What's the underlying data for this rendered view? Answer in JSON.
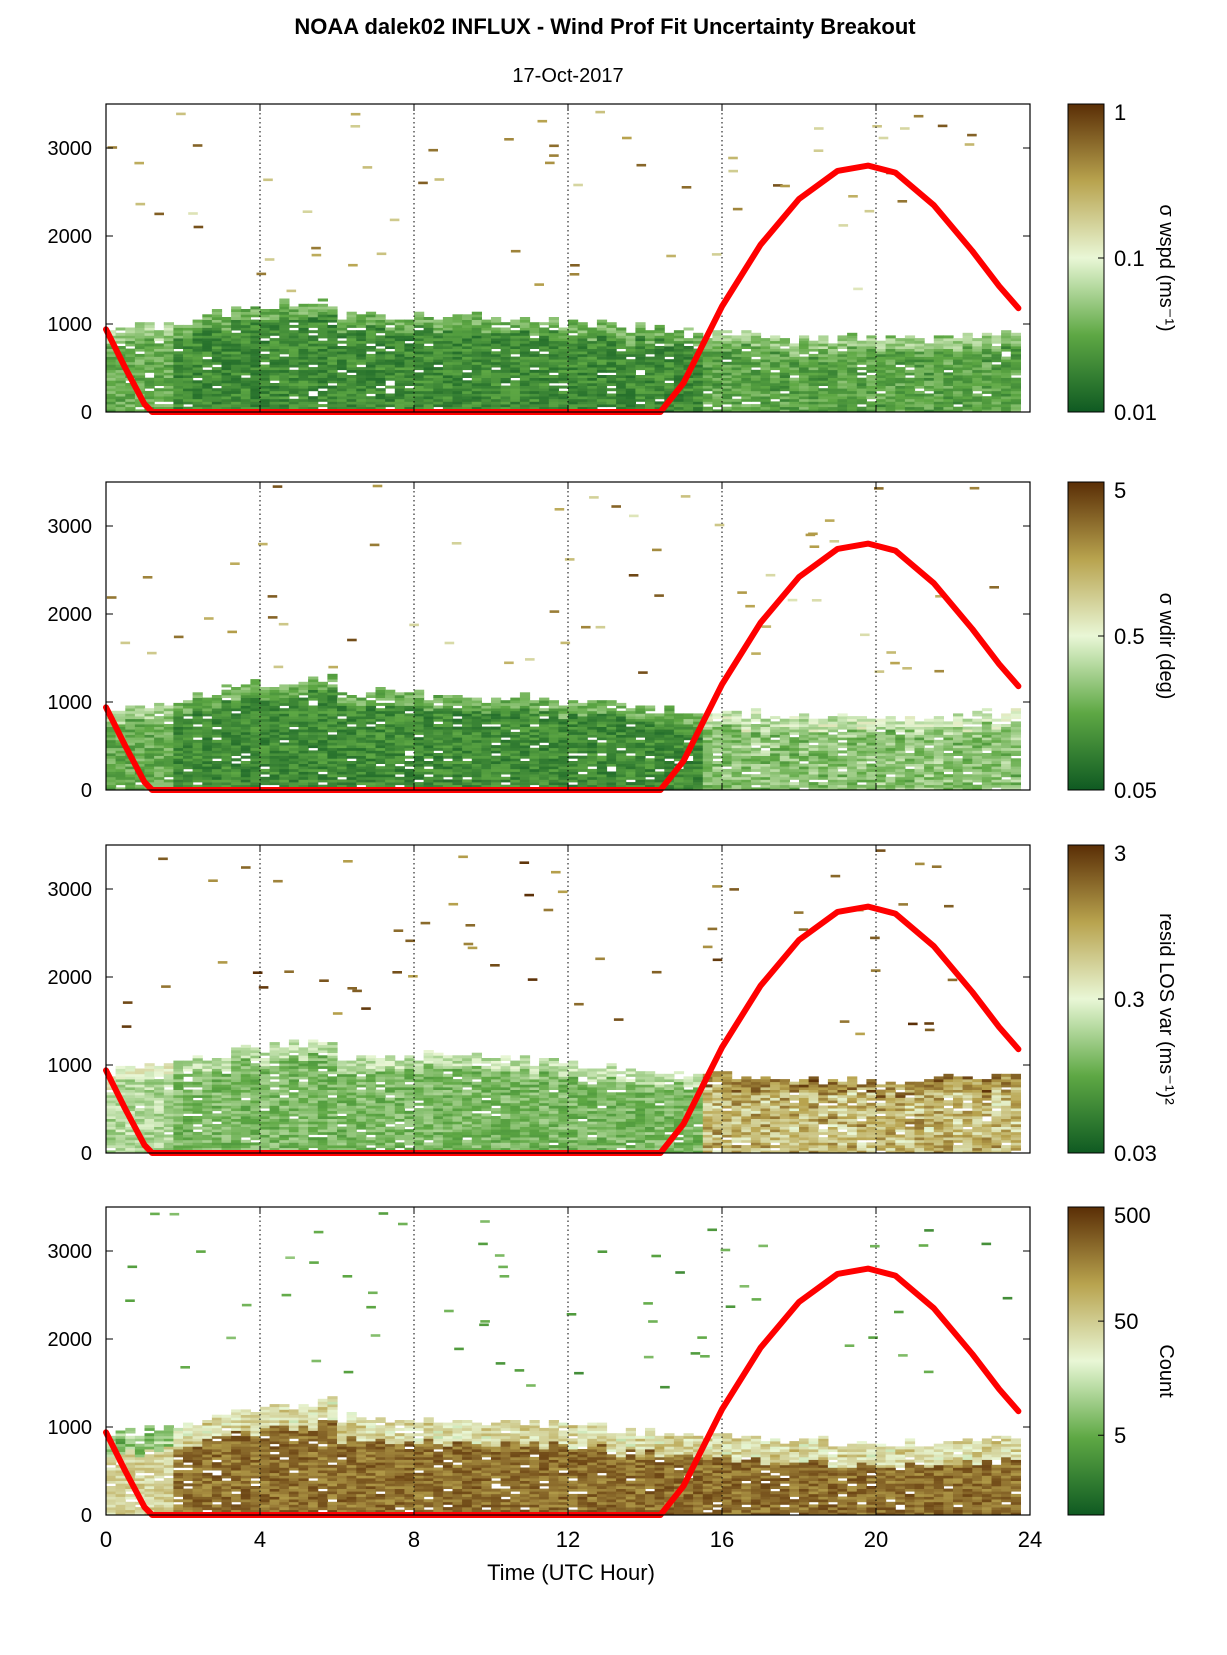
{
  "figure": {
    "title": "NOAA dalek02 INFLUX - Wind Prof Fit Uncertainty Breakout",
    "subtitle": "17-Oct-2017",
    "xlabel": "Time (UTC Hour)",
    "x_ticks": [
      "0",
      "4",
      "8",
      "12",
      "16",
      "20",
      "24"
    ],
    "y_ticks": [
      "0",
      "1000",
      "2000",
      "3000"
    ]
  },
  "colors": {
    "low": "#1b6e2e",
    "mid": "#e6f7d2",
    "high": "#5a2e06",
    "boundary_line": "#ff0000"
  },
  "chart_data": [
    {
      "type": "heatmap",
      "colorbar_label": "σ wspd (ms⁻¹)",
      "colorbar_ticks": [
        "1",
        "0.1",
        "0.01"
      ],
      "clim": [
        0.01,
        1
      ],
      "color_scale": "log",
      "xlim": [
        0,
        24
      ],
      "ylim": [
        0,
        3500
      ],
      "profile": {
        "low_band_top_m": 1150,
        "dominant": "low",
        "late_day_shift": "slight"
      }
    },
    {
      "type": "heatmap",
      "colorbar_label": "σ wdir (deg)",
      "colorbar_ticks": [
        "5",
        "0.5",
        "0.05"
      ],
      "clim": [
        0.05,
        5
      ],
      "color_scale": "log",
      "xlim": [
        0,
        24
      ],
      "ylim": [
        0,
        3500
      ],
      "profile": {
        "low_band_top_m": 1150,
        "dominant": "low",
        "late_day_shift": "moderate"
      }
    },
    {
      "type": "heatmap",
      "colorbar_label": "resid LOS var (ms⁻¹)²",
      "colorbar_ticks": [
        "3",
        "0.3",
        "0.03"
      ],
      "clim": [
        0.03,
        3
      ],
      "color_scale": "log",
      "xlim": [
        0,
        24
      ],
      "ylim": [
        0,
        3500
      ],
      "profile": {
        "low_band_top_m": 1150,
        "dominant": "mid",
        "late_day_shift": "strong"
      }
    },
    {
      "type": "heatmap",
      "colorbar_label": "Count",
      "colorbar_ticks": [
        "500",
        "50",
        "5"
      ],
      "clim": [
        1,
        500
      ],
      "color_scale": "log",
      "xlim": [
        0,
        24
      ],
      "ylim": [
        0,
        3500
      ],
      "profile": {
        "low_band_top_m": 1150,
        "dominant": "high",
        "late_day_shift": "none"
      }
    }
  ],
  "boundary_layer_line": {
    "series_color": "red",
    "x": [
      0,
      0.5,
      1.0,
      1.2,
      14.4,
      15.0,
      16.0,
      17.0,
      18.0,
      19.0,
      19.8,
      20.5,
      21.5,
      22.5,
      23.2,
      23.7
    ],
    "y": [
      940,
      500,
      90,
      0,
      0,
      330,
      1200,
      1900,
      2420,
      2740,
      2800,
      2720,
      2350,
      1830,
      1430,
      1180
    ]
  },
  "vertical_gridlines_x": [
    4,
    8,
    12,
    16,
    20
  ]
}
